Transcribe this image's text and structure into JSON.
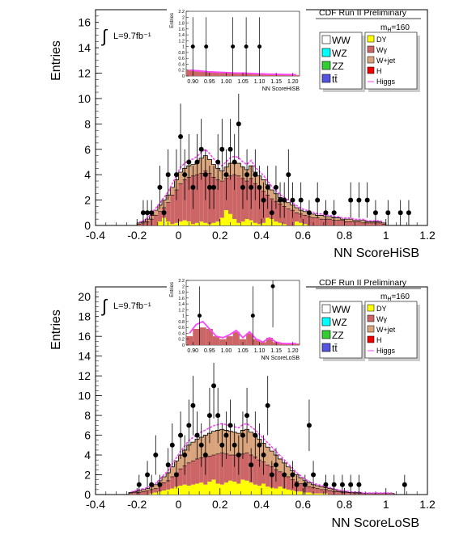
{
  "legend": {
    "entries": [
      {
        "name": "WW",
        "color": "#ffffff"
      },
      {
        "name": "WZ",
        "color": "#00ffff"
      },
      {
        "name": "ZZ",
        "color": "#33cc33"
      },
      {
        "name": "tt̄",
        "color": "#5555dd"
      },
      {
        "name": "DY",
        "color": "#ffff00"
      },
      {
        "name": "Wγ",
        "color": "#cc6666"
      },
      {
        "name": "W+jet",
        "color": "#d9a47c"
      },
      {
        "name": "H",
        "color": "#ee0000"
      },
      {
        "name": "Higgs",
        "color": "#ff44ff",
        "style": "line"
      }
    ]
  },
  "chart_data": [
    {
      "type": "bar",
      "title": "CDF Run II Preliminary",
      "mass_label": "m_H=160",
      "lumi_label": "L=9.7fb⁻¹",
      "xlabel": "NN ScoreHiSB",
      "ylabel": "Entries",
      "xlim": [
        -0.4,
        1.2
      ],
      "ylim": [
        0,
        17
      ],
      "xticks": [
        "-0.4",
        "-0.2",
        "0",
        "0.2",
        "0.4",
        "0.6",
        "0.8",
        "1",
        "1.2"
      ],
      "yticks": [
        "0",
        "2",
        "4",
        "6",
        "8",
        "10",
        "12",
        "14",
        "16"
      ],
      "bin_width": 0.02,
      "bin_start": -0.2,
      "stack_total": [
        0.2,
        0.3,
        0.5,
        0.8,
        1.2,
        1.6,
        2.0,
        2.4,
        3.0,
        3.6,
        4.2,
        4.5,
        4.7,
        4.8,
        5.0,
        5.3,
        5.5,
        5.2,
        4.8,
        4.5,
        4.3,
        4.6,
        4.9,
        5.0,
        4.9,
        4.6,
        4.4,
        4.7,
        4.2,
        3.9,
        3.6,
        3.2,
        2.8,
        2.5,
        2.2,
        2.0,
        1.8,
        1.6,
        1.4,
        1.2,
        1.1,
        1.0,
        0.9,
        0.8,
        0.8,
        0.7,
        0.7,
        0.6,
        0.6,
        0.5,
        0.5,
        0.5,
        0.4,
        0.4,
        0.4,
        0.3,
        0.3,
        0.3,
        0.3,
        0.2
      ],
      "stack_lower": [
        0.1,
        0.2,
        0.3,
        0.5,
        0.8,
        1.1,
        1.4,
        1.8,
        2.4,
        2.8,
        3.3,
        3.6,
        3.8,
        3.9,
        4.0,
        4.1,
        4.3,
        4.1,
        3.8,
        3.6,
        3.5,
        3.7,
        3.9,
        4.0,
        3.9,
        3.7,
        3.5,
        3.7,
        3.3,
        3.0,
        2.7,
        2.4,
        2.1,
        1.9,
        1.7,
        1.5,
        1.3,
        1.2,
        1.0,
        0.9,
        0.8,
        0.7,
        0.6,
        0.6,
        0.5,
        0.5,
        0.5,
        0.4,
        0.4,
        0.4,
        0.3,
        0.3,
        0.3,
        0.3,
        0.2,
        0.2,
        0.2,
        0.2,
        0.2,
        0.1
      ],
      "dy": [
        0,
        0,
        0,
        0,
        0,
        0.3,
        0.6,
        0.3,
        0.1,
        0.2,
        0.3,
        0.4,
        0.3,
        0.1,
        0.2,
        0.3,
        0.2,
        0.1,
        0.2,
        0.3,
        0.6,
        1.2,
        0.9,
        0.5,
        0.2,
        0.3,
        0.5,
        0.4,
        0.2,
        0.1,
        0.2,
        0.6,
        0.5,
        0.3,
        0.2,
        0.1,
        0,
        0,
        0.3,
        0.2,
        0.1,
        0,
        0,
        0,
        0,
        0,
        0,
        0,
        0,
        0,
        0,
        0,
        0,
        0,
        0,
        0,
        0,
        0,
        0,
        0
      ],
      "points": [
        {
          "x": -0.18,
          "y": 1,
          "e": 1
        },
        {
          "x": -0.16,
          "y": 1,
          "e": 1
        },
        {
          "x": -0.14,
          "y": 1,
          "e": 1
        },
        {
          "x": -0.1,
          "y": 3,
          "e": 1.7
        },
        {
          "x": -0.08,
          "y": 1,
          "e": 1
        },
        {
          "x": -0.06,
          "y": 4,
          "e": 2
        },
        {
          "x": -0.02,
          "y": 4,
          "e": 2
        },
        {
          "x": 0.0,
          "y": 7,
          "e": 2.6
        },
        {
          "x": 0.02,
          "y": 4,
          "e": 2
        },
        {
          "x": 0.04,
          "y": 5,
          "e": 2.2
        },
        {
          "x": 0.06,
          "y": 3,
          "e": 1.7
        },
        {
          "x": 0.08,
          "y": 5,
          "e": 2.2
        },
        {
          "x": 0.1,
          "y": 6,
          "e": 2.4
        },
        {
          "x": 0.12,
          "y": 4,
          "e": 2
        },
        {
          "x": 0.14,
          "y": 3,
          "e": 1.7
        },
        {
          "x": 0.16,
          "y": 3,
          "e": 1.7
        },
        {
          "x": 0.18,
          "y": 5,
          "e": 2.2
        },
        {
          "x": 0.2,
          "y": 6,
          "e": 2.4
        },
        {
          "x": 0.22,
          "y": 4,
          "e": 2
        },
        {
          "x": 0.24,
          "y": 6,
          "e": 2.4
        },
        {
          "x": 0.26,
          "y": 5,
          "e": 2.2
        },
        {
          "x": 0.28,
          "y": 8,
          "e": 2.8
        },
        {
          "x": 0.3,
          "y": 3,
          "e": 1.7
        },
        {
          "x": 0.32,
          "y": 4,
          "e": 2
        },
        {
          "x": 0.34,
          "y": 3,
          "e": 1.7
        },
        {
          "x": 0.36,
          "y": 4,
          "e": 2
        },
        {
          "x": 0.38,
          "y": 3,
          "e": 1.7
        },
        {
          "x": 0.4,
          "y": 2,
          "e": 1.4
        },
        {
          "x": 0.42,
          "y": 3,
          "e": 1.7
        },
        {
          "x": 0.44,
          "y": 1,
          "e": 1
        },
        {
          "x": 0.46,
          "y": 3,
          "e": 1.7
        },
        {
          "x": 0.48,
          "y": 2,
          "e": 1.4
        },
        {
          "x": 0.5,
          "y": 2,
          "e": 1.4
        },
        {
          "x": 0.52,
          "y": 4,
          "e": 2
        },
        {
          "x": 0.54,
          "y": 2,
          "e": 1.4
        },
        {
          "x": 0.58,
          "y": 2,
          "e": 1.4
        },
        {
          "x": 0.62,
          "y": 1,
          "e": 1
        },
        {
          "x": 0.66,
          "y": 2,
          "e": 1.4
        },
        {
          "x": 0.7,
          "y": 1,
          "e": 1
        },
        {
          "x": 0.74,
          "y": 1,
          "e": 1
        },
        {
          "x": 0.82,
          "y": 2,
          "e": 1.4
        },
        {
          "x": 0.86,
          "y": 2,
          "e": 1.4
        },
        {
          "x": 0.9,
          "y": 2,
          "e": 1.4
        },
        {
          "x": 0.94,
          "y": 1,
          "e": 1
        },
        {
          "x": 1.0,
          "y": 1,
          "e": 1
        },
        {
          "x": 1.06,
          "y": 1,
          "e": 1
        },
        {
          "x": 1.1,
          "y": 1,
          "e": 1
        }
      ],
      "inset": {
        "ylabel": "Entries",
        "xlabel": "NN ScoreHiSB",
        "xlim": [
          0.88,
          1.22
        ],
        "ylim": [
          0,
          2.2
        ],
        "xticks": [
          "0.90",
          "0.95",
          "1.00",
          "1.05",
          "1.10",
          "1.15",
          "1.20"
        ],
        "yticks": [
          "0",
          "0.2",
          "0.4",
          "0.6",
          "0.8",
          "1",
          "1.2",
          "1.4",
          "1.6",
          "1.8",
          "2",
          "2.2"
        ],
        "bin_start": 0.88,
        "bin_width": 0.02,
        "stack_total": [
          0.2,
          0.2,
          0.18,
          0.16,
          0.15,
          0.14,
          0.13,
          0.12,
          0.12,
          0.1,
          0.08,
          0.06,
          0.05,
          0.05,
          0.04,
          0.04,
          0.03
        ],
        "higgs": [
          0.2,
          0.18,
          0.16,
          0.14,
          0.13,
          0.12,
          0.11,
          0.1,
          0.1,
          0.09,
          0.08,
          0.07,
          0.06,
          0.06,
          0.05,
          0.05,
          0.04
        ],
        "points": [
          {
            "x": 0.9,
            "y": 1,
            "e": 1
          },
          {
            "x": 0.94,
            "y": 1,
            "e": 1
          },
          {
            "x": 1.02,
            "y": 1,
            "e": 1
          },
          {
            "x": 1.06,
            "y": 1,
            "e": 1
          },
          {
            "x": 1.1,
            "y": 1,
            "e": 1
          }
        ]
      }
    },
    {
      "type": "bar",
      "title": "CDF Run II Preliminary",
      "mass_label": "m_H=160",
      "lumi_label": "L=9.7fb⁻¹",
      "xlabel": "NN ScoreLoSB",
      "ylabel": "Entries",
      "xlim": [
        -0.4,
        1.2
      ],
      "ylim": [
        0,
        21
      ],
      "xticks": [
        "-0.4",
        "-0.2",
        "0",
        "0.2",
        "0.4",
        "0.6",
        "0.8",
        "1",
        "1.2"
      ],
      "yticks": [
        "0",
        "2",
        "4",
        "6",
        "8",
        "10",
        "12",
        "14",
        "16",
        "18",
        "20"
      ],
      "bin_width": 0.02,
      "bin_start": -0.24,
      "stack_total": [
        0.2,
        0.3,
        0.4,
        0.5,
        0.6,
        0.8,
        1.0,
        1.4,
        1.8,
        2.2,
        2.8,
        3.4,
        4.0,
        4.5,
        5.0,
        5.3,
        5.6,
        5.8,
        6.0,
        6.2,
        6.4,
        6.5,
        6.6,
        6.5,
        6.4,
        6.3,
        6.2,
        6.5,
        6.6,
        6.3,
        6.0,
        5.6,
        5.2,
        4.8,
        4.4,
        4.0,
        3.6,
        3.2,
        2.8,
        2.4,
        2.0,
        1.7,
        1.4,
        1.2,
        1.0,
        0.9,
        0.8,
        0.7,
        0.6,
        0.5,
        0.4,
        0.3,
        0.3,
        0.2,
        0.2,
        0.2,
        0.1,
        0.1,
        0.1,
        0.1,
        0.1,
        0.1,
        0.1,
        0.1
      ],
      "stack_lower": [
        0.1,
        0.2,
        0.2,
        0.3,
        0.4,
        0.5,
        0.6,
        0.9,
        1.2,
        1.4,
        1.8,
        2.2,
        2.6,
        2.9,
        3.2,
        3.4,
        3.6,
        3.7,
        3.8,
        3.9,
        4.0,
        4.1,
        4.2,
        4.1,
        4.0,
        4.0,
        3.9,
        4.1,
        4.2,
        4.0,
        3.8,
        3.5,
        3.3,
        3.0,
        2.8,
        2.5,
        2.3,
        2.0,
        1.8,
        1.5,
        1.3,
        1.1,
        0.9,
        0.8,
        0.7,
        0.6,
        0.5,
        0.5,
        0.4,
        0.3,
        0.3,
        0.2,
        0.2,
        0.2,
        0.1,
        0.1,
        0.1,
        0.1,
        0.1,
        0.1,
        0.1,
        0.1,
        0.1,
        0.1
      ],
      "dy": [
        0,
        0,
        0,
        0,
        0,
        0.1,
        0.2,
        0.3,
        0.4,
        0.5,
        0.6,
        0.8,
        0.9,
        1.0,
        0.9,
        1.0,
        1.1,
        1.2,
        1.0,
        1.3,
        1.5,
        1.1,
        1.0,
        1.2,
        1.4,
        1.3,
        1.1,
        1.5,
        1.4,
        1.2,
        1.0,
        0.9,
        1.1,
        0.8,
        0.7,
        0.6,
        0.8,
        0.6,
        0.5,
        0.4,
        0.3,
        0.3,
        0.2,
        0.2,
        0.1,
        0.1,
        0.1,
        0.1,
        0,
        0,
        0,
        0,
        0,
        0,
        0,
        0,
        0,
        0,
        0,
        0,
        0,
        0,
        0,
        0
      ],
      "points": [
        {
          "x": -0.2,
          "y": 1,
          "e": 1
        },
        {
          "x": -0.16,
          "y": 2,
          "e": 1.4
        },
        {
          "x": -0.14,
          "y": 1,
          "e": 1
        },
        {
          "x": -0.12,
          "y": 4,
          "e": 2
        },
        {
          "x": -0.1,
          "y": 1,
          "e": 1
        },
        {
          "x": -0.06,
          "y": 3,
          "e": 1.7
        },
        {
          "x": -0.04,
          "y": 5,
          "e": 2.2
        },
        {
          "x": -0.02,
          "y": 2,
          "e": 1.4
        },
        {
          "x": 0.0,
          "y": 6,
          "e": 2.4
        },
        {
          "x": 0.02,
          "y": 4,
          "e": 2
        },
        {
          "x": 0.04,
          "y": 7,
          "e": 2.6
        },
        {
          "x": 0.06,
          "y": 9,
          "e": 3
        },
        {
          "x": 0.08,
          "y": 6,
          "e": 2.4
        },
        {
          "x": 0.1,
          "y": 5,
          "e": 2.2
        },
        {
          "x": 0.12,
          "y": 4,
          "e": 2
        },
        {
          "x": 0.14,
          "y": 8,
          "e": 2.8
        },
        {
          "x": 0.16,
          "y": 11,
          "e": 3.3
        },
        {
          "x": 0.18,
          "y": 8,
          "e": 2.8
        },
        {
          "x": 0.2,
          "y": 5,
          "e": 2.2
        },
        {
          "x": 0.22,
          "y": 6,
          "e": 2.4
        },
        {
          "x": 0.24,
          "y": 7,
          "e": 2.6
        },
        {
          "x": 0.26,
          "y": 5,
          "e": 2.2
        },
        {
          "x": 0.28,
          "y": 4,
          "e": 2
        },
        {
          "x": 0.3,
          "y": 6,
          "e": 2.4
        },
        {
          "x": 0.32,
          "y": 8,
          "e": 2.8
        },
        {
          "x": 0.34,
          "y": 3,
          "e": 1.7
        },
        {
          "x": 0.36,
          "y": 6,
          "e": 2.4
        },
        {
          "x": 0.38,
          "y": 5,
          "e": 2.2
        },
        {
          "x": 0.4,
          "y": 4,
          "e": 2
        },
        {
          "x": 0.42,
          "y": 9,
          "e": 3
        },
        {
          "x": 0.44,
          "y": 2,
          "e": 1.4
        },
        {
          "x": 0.46,
          "y": 3,
          "e": 1.7
        },
        {
          "x": 0.5,
          "y": 2,
          "e": 1.4
        },
        {
          "x": 0.54,
          "y": 2,
          "e": 1.4
        },
        {
          "x": 0.56,
          "y": 1,
          "e": 1
        },
        {
          "x": 0.6,
          "y": 1,
          "e": 1
        },
        {
          "x": 0.62,
          "y": 7,
          "e": 2.6
        },
        {
          "x": 0.64,
          "y": 2,
          "e": 1.4
        },
        {
          "x": 0.7,
          "y": 1,
          "e": 1
        },
        {
          "x": 0.74,
          "y": 1,
          "e": 1
        },
        {
          "x": 0.78,
          "y": 1,
          "e": 1
        },
        {
          "x": 0.82,
          "y": 1,
          "e": 1
        },
        {
          "x": 0.86,
          "y": 1,
          "e": 1
        },
        {
          "x": 1.08,
          "y": 1,
          "e": 1
        }
      ],
      "inset": {
        "ylabel": "Entries",
        "xlabel": "NN ScoreLoSB",
        "xlim": [
          0.88,
          1.22
        ],
        "ylim": [
          0,
          2.2
        ],
        "xticks": [
          "0.90",
          "0.95",
          "1.00",
          "1.05",
          "1.10",
          "1.15",
          "1.20"
        ],
        "yticks": [
          "0",
          "0.2",
          "0.4",
          "0.6",
          "0.8",
          "1",
          "1.2",
          "1.4",
          "1.6",
          "1.8",
          "2",
          "2.2"
        ],
        "bin_start": 0.88,
        "bin_width": 0.02,
        "stack_total": [
          0.3,
          0.55,
          0.6,
          0.55,
          0.3,
          0.2,
          0.3,
          0.45,
          0.2,
          0.4,
          0.2,
          0.1,
          0.25,
          0.1,
          0.05,
          0.05,
          0.05
        ],
        "higgs": [
          0.4,
          0.7,
          0.8,
          0.55,
          0.3,
          0.25,
          0.35,
          0.5,
          0.25,
          0.45,
          0.2,
          0.1,
          0.25,
          0.1,
          0.05,
          0.05,
          0.05
        ],
        "points": [
          {
            "x": 0.92,
            "y": 1,
            "e": 1
          },
          {
            "x": 1.08,
            "y": 1,
            "e": 1
          },
          {
            "x": 1.14,
            "y": 2,
            "e": 1.4
          }
        ]
      }
    }
  ]
}
